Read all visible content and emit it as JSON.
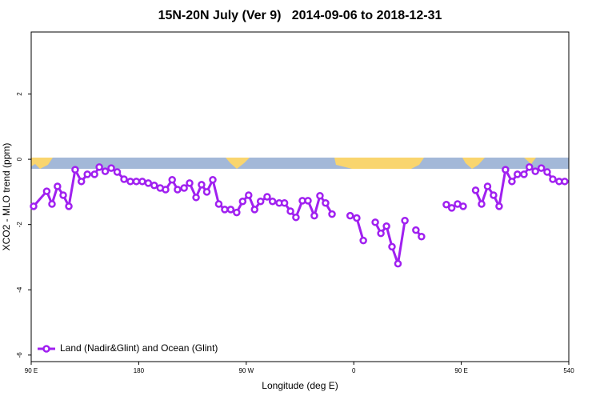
{
  "chart_data": {
    "type": "line",
    "title": "15N-20N July (Ver 9)   2014-09-06 to 2018-12-31",
    "x_label": "Longitude (deg E)",
    "y_label": "XCO2 - MLO trend (ppm)",
    "xlim": [
      90,
      540
    ],
    "ylim": [
      -6.2,
      3.9
    ],
    "xticks": [
      {
        "value": 90,
        "label": "90 E"
      },
      180,
      {
        "value": 270,
        "label": "90 W"
      },
      {
        "value": 360,
        "label": "0"
      },
      {
        "value": 450,
        "label": "90 E"
      },
      540
    ],
    "yticks": [
      2,
      0,
      -2,
      -4,
      -6
    ],
    "legend": "bottom-left",
    "x": [
      92,
      103,
      107.4,
      112,
      116.8,
      121.5,
      126.8,
      132,
      137,
      143,
      147,
      152,
      157,
      162,
      167.7,
      173,
      178,
      183,
      188,
      193,
      198,
      202.5,
      208,
      212.5,
      218,
      222.6,
      228,
      232.6,
      237,
      242,
      247,
      252,
      257,
      262,
      267,
      272,
      277,
      282,
      287.5,
      292,
      297.6,
      302,
      307,
      311.6,
      317,
      321.7,
      327,
      331.7,
      336.4,
      341.8,
      null,
      357,
      362.5,
      368,
      null,
      378,
      382.7,
      387.4,
      392,
      397,
      402.8,
      null,
      412,
      416.7,
      null,
      437.5,
      442,
      446.9,
      451.6,
      null,
      462,
      467,
      472,
      477,
      481.7,
      487,
      492.4,
      497,
      502.5,
      507,
      512,
      517,
      521.9,
      526.6,
      531.9,
      536.6
    ],
    "series": [
      {
        "name": "Land (Nadir&Glint) and Ocean (Glint)",
        "color": "#a020f0",
        "values": [
          -1.44,
          -0.98,
          -1.37,
          -0.83,
          -1.1,
          -1.44,
          -0.32,
          -0.68,
          -0.46,
          -0.46,
          -0.24,
          -0.37,
          -0.27,
          -0.39,
          -0.61,
          -0.68,
          -0.68,
          -0.68,
          -0.73,
          -0.8,
          -0.88,
          -0.93,
          -0.63,
          -0.93,
          -0.88,
          -0.73,
          -1.17,
          -0.78,
          -1.0,
          -0.63,
          -1.37,
          -1.54,
          -1.54,
          -1.63,
          -1.29,
          -1.1,
          -1.54,
          -1.29,
          -1.15,
          -1.29,
          -1.34,
          -1.34,
          -1.59,
          -1.78,
          -1.27,
          -1.27,
          -1.73,
          -1.12,
          -1.34,
          -1.68,
          null,
          -1.73,
          -1.8,
          -2.49,
          null,
          -1.93,
          -2.27,
          -2.05,
          -2.68,
          -3.2,
          -1.88,
          null,
          -2.17,
          -2.37,
          null,
          -1.39,
          -1.49,
          -1.37,
          -1.44,
          null,
          -0.95,
          -1.37,
          -0.83,
          -1.1,
          -1.44,
          -0.32,
          -0.68,
          -0.46,
          -0.46,
          -0.24,
          -0.37,
          -0.27,
          -0.39,
          -0.61,
          -0.68,
          -0.68
        ]
      }
    ]
  }
}
